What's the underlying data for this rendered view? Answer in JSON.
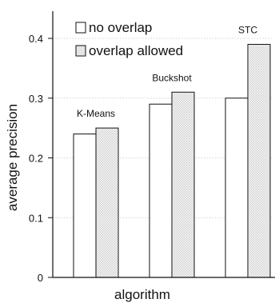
{
  "chart_data": {
    "type": "bar",
    "xlabel": "algorithm",
    "ylabel": "average precision",
    "ylim": [
      0,
      0.45
    ],
    "yticks": [
      "0",
      "0.1",
      "0.2",
      "0.3",
      "0.4"
    ],
    "grid": true,
    "legend_position": "top-left",
    "categories": [
      "K-Means",
      "Buckshot",
      "STC"
    ],
    "series": [
      {
        "name": "no overlap",
        "values": [
          0.24,
          0.29,
          0.3
        ],
        "fill": "white"
      },
      {
        "name": "overlap allowed",
        "values": [
          0.25,
          0.31,
          0.39
        ],
        "fill": "dotted"
      }
    ]
  }
}
